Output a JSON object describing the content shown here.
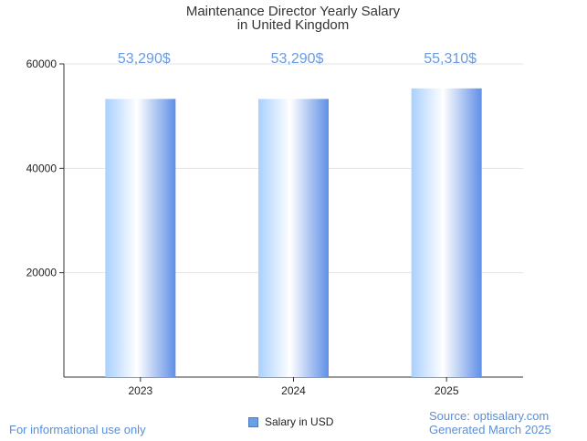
{
  "chart_data": {
    "type": "bar",
    "title": [
      "Maintenance Director Yearly Salary",
      "in United Kingdom"
    ],
    "categories": [
      "2023",
      "2024",
      "2025"
    ],
    "values": [
      53290,
      53290,
      55310
    ],
    "value_labels": [
      "53,290$",
      "53,290$",
      "55,310$"
    ],
    "yticks": [
      20000,
      40000,
      60000
    ],
    "ylim": [
      0,
      60000
    ],
    "legend": "Salary in USD",
    "grid": true
  },
  "colors": {
    "bar_light": "#e8f3ff",
    "bar_dark": "#5f8fe6",
    "label": "#6a9be0",
    "grid": "#e3e3e3"
  },
  "footer": {
    "left": "For informational use only",
    "source": "Source: optisalary.com",
    "generated": "Generated March 2025"
  }
}
